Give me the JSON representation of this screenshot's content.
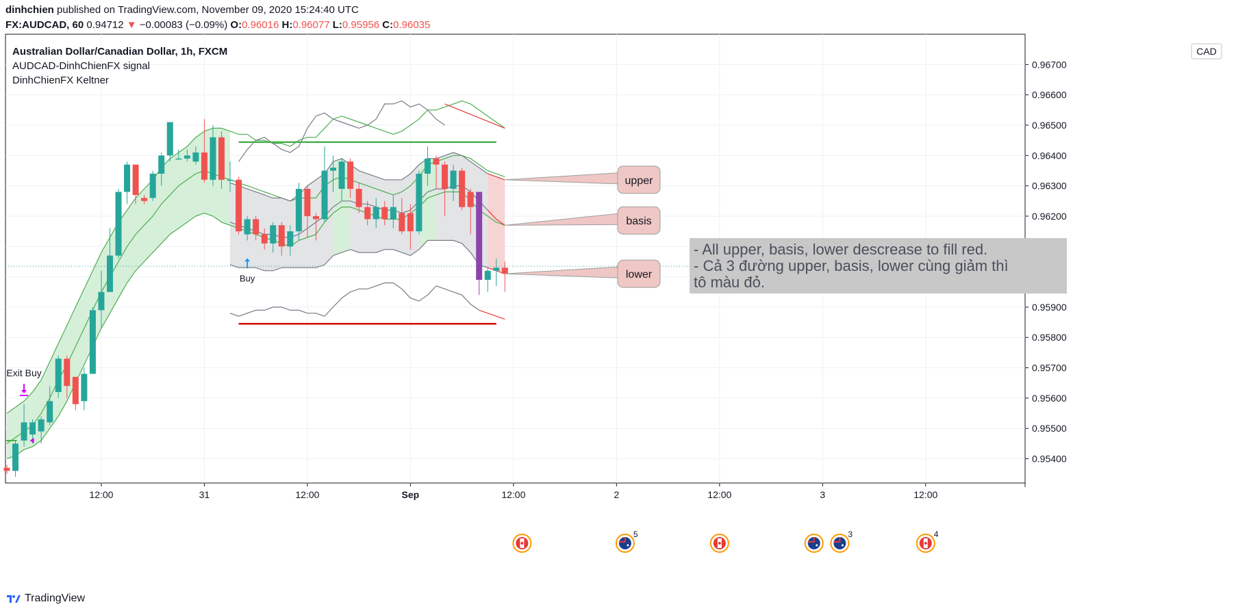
{
  "header": {
    "line1_user": "dinhchien",
    "line1_rest": " published on TradingView.com, November 09, 2020 15:24:40 UTC",
    "symbol": "FX:AUDCAD, 60",
    "price": "0.94712",
    "arrow": "▼",
    "change": "−0.00083 (−0.09%)",
    "o_label": "O:",
    "o_value": "0.96016",
    "h_label": "H:",
    "h_value": "0.96077",
    "l_label": "L:",
    "l_value": "0.95956",
    "c_label": "C:",
    "c_value": "0.96035"
  },
  "legend": {
    "title": "Australian Dollar/Canadian Dollar, 1h, FXCM",
    "indicator1": "AUDCAD-DinhChienFX signal",
    "indicator2": "DinhChienFX Keltner"
  },
  "footer": {
    "brand": "TradingView",
    "icon": "tradingview-logo-icon"
  },
  "colors": {
    "up": "#26a69a",
    "down": "#ef5350",
    "purple": "#8e44ad",
    "band_green": "#4caf50",
    "band_gray": "#787b86",
    "band_red": "#e53935",
    "fill_green": "#d6efd9",
    "fill_gray": "#e3e4e6",
    "fill_red": "#f7d4d4",
    "support_red": "#d50000",
    "resistance_green": "#4caf50"
  },
  "chart_data": {
    "type": "candlestick",
    "currency_badge": "CAD",
    "ylim": [
      0.9532,
      0.968
    ],
    "y_ticks": [
      "0.96700",
      "0.96600",
      "0.96500",
      "0.96400",
      "0.96300",
      "0.96200",
      "0.96100",
      "0.96000",
      "0.95900",
      "0.95800",
      "0.95700",
      "0.95600",
      "0.95500",
      "0.95400"
    ],
    "y_tick_values": [
      0.967,
      0.966,
      0.965,
      0.964,
      0.963,
      0.962,
      0.961,
      0.96,
      0.959,
      0.958,
      0.957,
      0.956,
      0.955,
      0.954
    ],
    "x_ticks": [
      {
        "label": "12:00",
        "bar": 11
      },
      {
        "label": "31",
        "bar": 23
      },
      {
        "label": "12:00",
        "bar": 35
      },
      {
        "label": "Sep",
        "bar": 47
      },
      {
        "label": "12:00",
        "bar": 59
      },
      {
        "label": "2",
        "bar": 71
      },
      {
        "label": "12:00",
        "bar": 83
      },
      {
        "label": "3",
        "bar": 95
      },
      {
        "label": "12:00",
        "bar": 107
      }
    ],
    "candles": [
      [
        0.9537,
        0.9536,
        0.9538,
        0.9535
      ],
      [
        0.9536,
        0.9545,
        0.9546,
        0.9534
      ],
      [
        0.9546,
        0.9552,
        0.9558,
        0.9544
      ],
      [
        0.9548,
        0.9552,
        0.9553,
        0.9545
      ],
      [
        0.9549,
        0.9553,
        0.9554,
        0.9545
      ],
      [
        0.9552,
        0.9559,
        0.9564,
        0.9551
      ],
      [
        0.9562,
        0.9573,
        0.9574,
        0.956
      ],
      [
        0.9573,
        0.9564,
        0.9574,
        0.956
      ],
      [
        0.9567,
        0.9558,
        0.9567,
        0.9556
      ],
      [
        0.9559,
        0.9568,
        0.957,
        0.9556
      ],
      [
        0.9568,
        0.9589,
        0.959,
        0.9568
      ],
      [
        0.9589,
        0.9595,
        0.9602,
        0.9583
      ],
      [
        0.9595,
        0.9607,
        0.9616,
        0.9595
      ],
      [
        0.9607,
        0.9628,
        0.9629,
        0.9606
      ],
      [
        0.9628,
        0.9637,
        0.9638,
        0.9624
      ],
      [
        0.9637,
        0.9627,
        0.9637,
        0.9624
      ],
      [
        0.9626,
        0.9625,
        0.9627,
        0.9624
      ],
      [
        0.9626,
        0.9634,
        0.9635,
        0.9625
      ],
      [
        0.9634,
        0.964,
        0.9641,
        0.963
      ],
      [
        0.964,
        0.9651,
        0.965,
        0.9638
      ],
      [
        0.9639,
        0.9639,
        0.9642,
        0.9639
      ],
      [
        0.9639,
        0.964,
        0.9642,
        0.9638
      ],
      [
        0.9638,
        0.9641,
        0.9643,
        0.9637
      ],
      [
        0.9641,
        0.9632,
        0.9652,
        0.9631
      ],
      [
        0.9632,
        0.9646,
        0.965,
        0.963
      ],
      [
        0.9646,
        0.9632,
        0.9648,
        0.9629
      ],
      [
        0.9632,
        0.9632,
        0.9638,
        0.9628
      ],
      [
        0.9632,
        0.9615,
        0.9633,
        0.9614
      ],
      [
        0.9614,
        0.9619,
        0.962,
        0.9612
      ],
      [
        0.9619,
        0.9614,
        0.962,
        0.9612
      ],
      [
        0.9614,
        0.9611,
        0.9616,
        0.9609
      ],
      [
        0.9611,
        0.9617,
        0.9618,
        0.9608
      ],
      [
        0.9617,
        0.961,
        0.9618,
        0.9607
      ],
      [
        0.961,
        0.9615,
        0.9617,
        0.9607
      ],
      [
        0.9615,
        0.9629,
        0.9631,
        0.9612
      ],
      [
        0.9629,
        0.962,
        0.963,
        0.9613
      ],
      [
        0.962,
        0.9619,
        0.9621,
        0.9612
      ],
      [
        0.9619,
        0.9635,
        0.9643,
        0.9618
      ],
      [
        0.9635,
        0.9636,
        0.964,
        0.9628
      ],
      [
        0.9629,
        0.9638,
        0.9639,
        0.9625
      ],
      [
        0.9638,
        0.9629,
        0.9639,
        0.9626
      ],
      [
        0.9629,
        0.9623,
        0.9631,
        0.9621
      ],
      [
        0.9623,
        0.9619,
        0.9625,
        0.9617
      ],
      [
        0.9619,
        0.9623,
        0.9626,
        0.9616
      ],
      [
        0.9623,
        0.9619,
        0.9625,
        0.9617
      ],
      [
        0.9619,
        0.9623,
        0.9627,
        0.9616
      ],
      [
        0.9621,
        0.9615,
        0.9626,
        0.9614
      ],
      [
        0.9621,
        0.9615,
        0.9624,
        0.9609
      ],
      [
        0.9615,
        0.9634,
        0.9635,
        0.9614
      ],
      [
        0.9634,
        0.9639,
        0.9643,
        0.963
      ],
      [
        0.9639,
        0.9637,
        0.964,
        0.9629
      ],
      [
        0.9637,
        0.9629,
        0.9638,
        0.962
      ],
      [
        0.9629,
        0.9635,
        0.9637,
        0.9625
      ],
      [
        0.9635,
        0.9623,
        0.9636,
        0.9622
      ],
      [
        0.9628,
        0.9623,
        0.9629,
        0.9614
      ],
      [
        0.9628,
        0.9599,
        0.9628,
        0.9594
      ],
      [
        0.9599,
        0.9602,
        0.9603,
        0.9595
      ],
      [
        0.9602,
        0.9603,
        0.9606,
        0.9597
      ],
      [
        0.9603,
        0.9601,
        0.9605,
        0.9595
      ]
    ],
    "special_candles": [
      {
        "bar": 55,
        "color": "purple"
      }
    ],
    "bands": {
      "upper": [
        0.9555,
        0.9557,
        0.9559,
        0.9562,
        0.9566,
        0.9572,
        0.9578,
        0.9584,
        0.959,
        0.9596,
        0.9602,
        0.9608,
        0.9613,
        0.9618,
        0.9622,
        0.9626,
        0.9629,
        0.9632,
        0.9636,
        0.9639,
        0.9641,
        0.9643,
        0.9646,
        0.9648,
        0.9649,
        0.9649,
        0.9648,
        0.9647,
        0.9647,
        0.9645,
        0.9645,
        0.9644,
        0.9644,
        0.9643,
        0.9645,
        0.9646,
        0.9646,
        0.9649,
        0.9652,
        0.9653,
        0.9652,
        0.9651,
        0.965,
        0.9649,
        0.9648,
        0.9647,
        0.9648,
        0.965,
        0.9652,
        0.9655,
        0.9655,
        0.9656,
        0.9657,
        0.9658,
        0.9657,
        0.9655,
        0.9653,
        0.9651,
        0.9649
      ],
      "basis": [
        0.9545,
        0.9547,
        0.9549,
        0.9551,
        0.9555,
        0.956,
        0.9566,
        0.9571,
        0.9577,
        0.9583,
        0.9589,
        0.9595,
        0.96,
        0.9605,
        0.961,
        0.9614,
        0.9617,
        0.962,
        0.9624,
        0.9627,
        0.963,
        0.9632,
        0.9634,
        0.9635,
        0.9634,
        0.9633,
        0.9632,
        0.9631,
        0.963,
        0.9629,
        0.9628,
        0.9627,
        0.9626,
        0.9625,
        0.9626,
        0.9626,
        0.9626,
        0.963,
        0.9632,
        0.9633,
        0.9632,
        0.9631,
        0.963,
        0.9629,
        0.9628,
        0.9627,
        0.9628,
        0.963,
        0.9633,
        0.9637,
        0.9638,
        0.9639,
        0.964,
        0.964,
        0.9639,
        0.9637,
        0.9635,
        0.9634,
        0.9633
      ],
      "lower": [
        0.954,
        0.9541,
        0.9543,
        0.9544,
        0.9546,
        0.955,
        0.9554,
        0.9559,
        0.9565,
        0.9571,
        0.9577,
        0.9583,
        0.9588,
        0.9593,
        0.9598,
        0.9602,
        0.9605,
        0.9608,
        0.9611,
        0.9614,
        0.9616,
        0.9618,
        0.962,
        0.9621,
        0.962,
        0.9618,
        0.9617,
        0.9616,
        0.9615,
        0.9614,
        0.9613,
        0.9612,
        0.9611,
        0.961,
        0.9612,
        0.9613,
        0.9614,
        0.9618,
        0.9621,
        0.9623,
        0.9623,
        0.9622,
        0.9621,
        0.962,
        0.9619,
        0.9619,
        0.9619,
        0.9621,
        0.9623,
        0.9626,
        0.9627,
        0.9628,
        0.9628,
        0.9628,
        0.9625,
        0.9622,
        0.962,
        0.9618,
        0.9617
      ]
    },
    "inner_bands": {
      "upper": [
        null,
        null,
        null,
        null,
        null,
        null,
        null,
        null,
        null,
        null,
        null,
        null,
        null,
        null,
        null,
        null,
        null,
        null,
        null,
        null,
        null,
        null,
        null,
        null,
        null,
        null,
        0.9631,
        0.963,
        0.9629,
        0.9628,
        0.9627,
        0.9626,
        0.9626,
        0.9625,
        0.9627,
        0.963,
        0.9632,
        0.9634,
        0.9638,
        0.9639,
        0.9637,
        0.9635,
        0.9634,
        0.9633,
        0.9632,
        0.9632,
        0.9632,
        0.9634,
        0.9637,
        0.9639,
        0.9639,
        0.964,
        0.9641,
        0.964,
        0.9638,
        0.9636,
        0.9634,
        0.9633,
        0.9632
      ],
      "basis": [
        null,
        null,
        null,
        null,
        null,
        null,
        null,
        null,
        null,
        null,
        null,
        null,
        null,
        null,
        null,
        null,
        null,
        null,
        null,
        null,
        null,
        null,
        null,
        null,
        null,
        null,
        0.9618,
        0.9617,
        0.9616,
        0.9615,
        0.9614,
        0.9614,
        0.9613,
        0.9613,
        0.9614,
        0.9616,
        0.9618,
        0.962,
        0.9623,
        0.9625,
        0.9625,
        0.9624,
        0.9624,
        0.9623,
        0.9622,
        0.9622,
        0.9621,
        0.9622,
        0.9625,
        0.9628,
        0.9629,
        0.9629,
        0.963,
        0.963,
        0.9628,
        0.9625,
        0.9622,
        0.9619,
        0.9617
      ],
      "lower": [
        null,
        null,
        null,
        null,
        null,
        null,
        null,
        null,
        null,
        null,
        null,
        null,
        null,
        null,
        null,
        null,
        null,
        null,
        null,
        null,
        null,
        null,
        null,
        null,
        null,
        null,
        0.9604,
        0.9603,
        0.9603,
        0.9603,
        0.9602,
        0.9602,
        0.9603,
        0.9603,
        0.9603,
        0.9603,
        0.9603,
        0.9604,
        0.9607,
        0.9608,
        0.9609,
        0.9608,
        0.9608,
        0.9608,
        0.9609,
        0.9609,
        0.9608,
        0.9607,
        0.9609,
        0.9612,
        0.9612,
        0.9612,
        0.9612,
        0.9611,
        0.9608,
        0.9604,
        0.9603,
        0.9602,
        0.9601
      ]
    },
    "outer_lower": [
      null,
      null,
      null,
      null,
      null,
      null,
      null,
      null,
      null,
      null,
      null,
      null,
      null,
      null,
      null,
      null,
      null,
      null,
      null,
      null,
      null,
      null,
      null,
      null,
      null,
      null,
      0.9588,
      0.9587,
      0.9588,
      0.9589,
      0.9589,
      0.959,
      0.959,
      0.9589,
      0.9589,
      0.9588,
      0.9588,
      0.9587,
      0.959,
      0.9593,
      0.9595,
      0.9596,
      0.9596,
      0.9597,
      0.9598,
      0.9598,
      0.9596,
      0.9593,
      0.9592,
      0.9594,
      0.9597,
      0.9596,
      0.9595,
      0.9594,
      0.9591,
      0.9589,
      0.9588,
      0.9587,
      0.9586
    ],
    "resistance": {
      "value": 0.96444,
      "from_bar": 27,
      "to_bar": 57
    },
    "support": {
      "value": 0.95845,
      "from_bar": 27,
      "to_bar": 57
    },
    "current_price": 0.96035,
    "annotations": {
      "callouts": [
        {
          "label": "upper",
          "value": 0.9632,
          "bar": 58
        },
        {
          "label": "basis",
          "value": 0.9617,
          "bar": 58
        },
        {
          "label": "lower",
          "value": 0.9601,
          "bar": 58
        }
      ],
      "note_line1": "- All upper, basis, lower descrease to fill red.",
      "note_line2": "- Cả 3 đường upper, basis, lower cùng giảm thì",
      "note_line3": "tô màu đỏ.",
      "buy_label": "Buy",
      "buy_bar": 28,
      "exit_buy_label": "Exit Buy",
      "exit_buy_bar": 2
    },
    "event_markers": [
      {
        "bar": 60,
        "flag": "CA",
        "count": ""
      },
      {
        "bar": 72,
        "flag": "AU",
        "count": "5"
      },
      {
        "bar": 83,
        "flag": "CA",
        "count": ""
      },
      {
        "bar": 94,
        "flag": "AU",
        "count": ""
      },
      {
        "bar": 97,
        "flag": "AU",
        "count": "3"
      },
      {
        "bar": 107,
        "flag": "CA",
        "count": "4"
      }
    ]
  }
}
